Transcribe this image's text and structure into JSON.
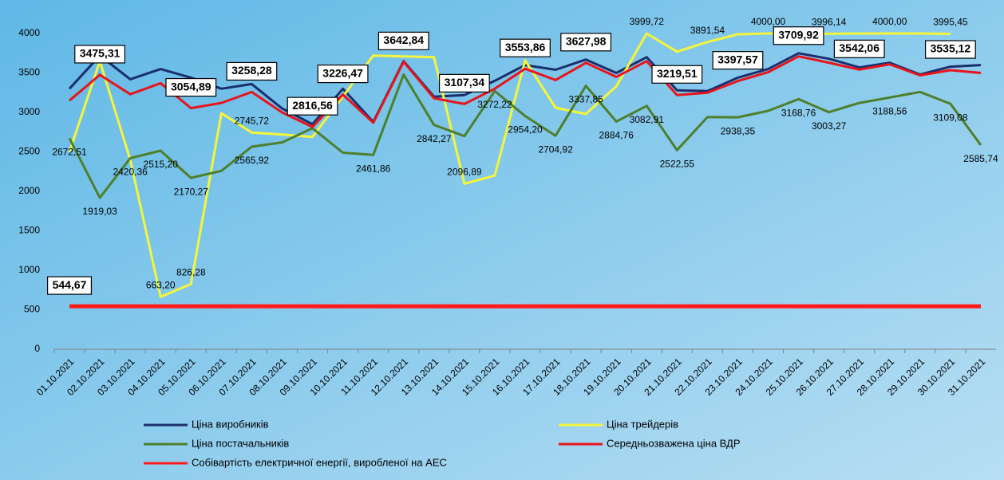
{
  "chart_data": {
    "type": "line",
    "categories": [
      "01.10.2021",
      "02.10.2021",
      "03.10.2021",
      "04.10.2021",
      "05.10.2021",
      "06.10.2021",
      "07.10.2021",
      "08.10.2021",
      "09.10.2021",
      "10.10.2021",
      "11.10.2021",
      "12.10.2021",
      "13.10.2021",
      "14.10.2021",
      "15.10.2021",
      "16.10.2021",
      "17.10.2021",
      "18.10.2021",
      "19.10.2021",
      "20.10.2021",
      "21.10.2021",
      "22.10.2021",
      "23.10.2021",
      "24.10.2021",
      "25.10.2021",
      "26.10.2021",
      "27.10.2021",
      "28.10.2021",
      "29.10.2021",
      "30.10.2021",
      "31.10.2021"
    ],
    "ylim": [
      0,
      4000
    ],
    "yticks": [
      0,
      500,
      1000,
      1500,
      2000,
      2500,
      3000,
      3500,
      4000
    ],
    "series": [
      {
        "name": "Ціна виробників",
        "color": "#1b2f6e",
        "width": 3,
        "values": [
          3300,
          3720,
          3420,
          3550,
          3440,
          3300,
          3360,
          3050,
          2850,
          3300,
          2880,
          3650,
          3200,
          3220,
          3400,
          3600,
          3540,
          3670,
          3500,
          3700,
          3280,
          3270,
          3440,
          3550,
          3750,
          3680,
          3570,
          3630,
          3480,
          3580,
          3600
        ]
      },
      {
        "name": "Ціна трейдерів",
        "color": "#f5f53a",
        "width": 3,
        "label_color": "#7a4a2a",
        "label_style": "above",
        "values": [
          2500,
          3650,
          2400,
          663.2,
          826.28,
          2990,
          2745.72,
          2720,
          2690,
          3200,
          3720,
          3710,
          3700,
          2096.89,
          2200,
          3660,
          3060,
          2980,
          3330,
          3999.72,
          3770,
          3891.54,
          3990,
          4000.0,
          4000,
          3996.14,
          4000,
          4000.0,
          4000,
          3995.45,
          null
        ],
        "value_labels": [
          null,
          null,
          null,
          "663,20",
          "826,28",
          null,
          "2745,72",
          null,
          null,
          null,
          null,
          null,
          null,
          "2096,89",
          null,
          null,
          null,
          null,
          null,
          "3999,72",
          null,
          "3891,54",
          null,
          "4000,00",
          null,
          "3996,14",
          null,
          "4000,00",
          null,
          "3995,45",
          null
        ]
      },
      {
        "name": "Ціна постачальників",
        "color": "#4e7f2a",
        "width": 3,
        "label_color": "#2f5a1a",
        "label_style": "below",
        "values": [
          2672.51,
          1919.03,
          2420.36,
          2515.2,
          2170.27,
          2260,
          2565.92,
          2620,
          2800,
          2490,
          2461.86,
          3480,
          2842.27,
          2700,
          3272.22,
          2954.2,
          2704.92,
          3337.85,
          2884.76,
          3082.91,
          2522.55,
          2940,
          2938.35,
          3020,
          3168.76,
          3003.27,
          3120,
          3188.56,
          3260,
          3109.08,
          2585.74
        ],
        "value_labels": [
          "2672,51",
          "1919,03",
          "2420,36",
          "2515,20",
          "2170,27",
          null,
          "2565,92",
          null,
          null,
          null,
          "2461,86",
          null,
          "2842,27",
          null,
          "3272,22",
          "2954,20",
          "2704,92",
          "3337,85",
          "2884,76",
          "3082,91",
          "2522,55",
          null,
          "2938,35",
          null,
          "3168,76",
          "3003,27",
          null,
          "3188,56",
          null,
          "3109,08",
          "2585,74"
        ]
      },
      {
        "name": "Середньозважена ціна ВДР",
        "color": "#e8141a",
        "width": 3,
        "label_color": "#000000",
        "label_style": "box",
        "values": [
          3150,
          3475.31,
          3230,
          3370,
          3054.89,
          3120,
          3258.28,
          3000,
          2816.56,
          3226.47,
          2870,
          3642.84,
          3180,
          3107.34,
          3300,
          3553.86,
          3410,
          3627.98,
          3450,
          3650,
          3219.51,
          3250,
          3397.57,
          3510,
          3709.92,
          3630,
          3542.06,
          3610,
          3470,
          3535.12,
          3500
        ],
        "value_labels": [
          null,
          "3475,31",
          null,
          null,
          "3054,89",
          null,
          "3258,28",
          null,
          "2816,56",
          "3226,47",
          null,
          "3642,84",
          null,
          "3107,34",
          null,
          "3553,86",
          null,
          "3627,98",
          null,
          null,
          "3219,51",
          null,
          "3397,57",
          null,
          "3709,92",
          null,
          "3542,06",
          null,
          null,
          "3535,12",
          null
        ]
      },
      {
        "name": "Собівартість електричної енергії, виробленої на АЕС",
        "color": "#ff1a1a",
        "width": 5,
        "label_color": "#ff0000",
        "label_style": "box",
        "values": [
          544.67,
          544.67,
          544.67,
          544.67,
          544.67,
          544.67,
          544.67,
          544.67,
          544.67,
          544.67,
          544.67,
          544.67,
          544.67,
          544.67,
          544.67,
          544.67,
          544.67,
          544.67,
          544.67,
          544.67,
          544.67,
          544.67,
          544.67,
          544.67,
          544.67,
          544.67,
          544.67,
          544.67,
          544.67,
          544.67,
          544.67
        ],
        "value_labels": [
          "544,67",
          null,
          null,
          null,
          null,
          null,
          null,
          null,
          null,
          null,
          null,
          null,
          null,
          null,
          null,
          null,
          null,
          null,
          null,
          null,
          null,
          null,
          null,
          null,
          null,
          null,
          null,
          null,
          null,
          null,
          null
        ]
      }
    ]
  }
}
